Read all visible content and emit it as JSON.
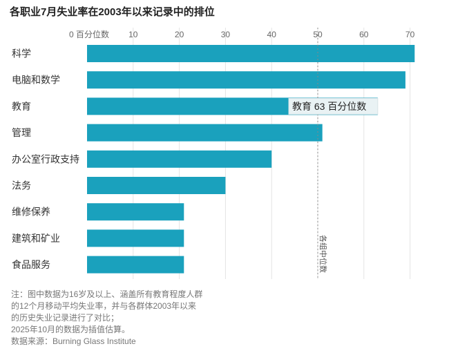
{
  "title": "各职业7月失业率在2003年以来记录中的排位",
  "chart_data": {
    "type": "bar",
    "orientation": "horizontal",
    "title": "各职业7月失业率在2003年以来记录中的排位",
    "x_unit_label": "百分位数",
    "categories": [
      "科学",
      "电脑和数学",
      "教育",
      "管理",
      "办公室行政支持",
      "法务",
      "维修保养",
      "建筑和矿业",
      "食品服务"
    ],
    "values": [
      71,
      69,
      63,
      51,
      40,
      30,
      21,
      21,
      21
    ],
    "xlim": [
      0,
      70
    ],
    "xticks": [
      0,
      10,
      20,
      30,
      40,
      50,
      60,
      70
    ],
    "xtick_labels": [
      "0 百分位数",
      "10",
      "20",
      "30",
      "40",
      "50",
      "60",
      "70"
    ],
    "grid": true,
    "reference_line": {
      "value": 50,
      "label": "各组中位数"
    },
    "tooltip": {
      "category_index": 2,
      "text": "教育 63 百分位数"
    },
    "bar_color": "#1aa1bd",
    "tooltip_bg": "#e9f2f4"
  },
  "notes": [
    "注：图中数据为16岁及以上、涵盖所有教育程度人群",
    "的12个月移动平均失业率，并与各群体2003年以来",
    "的历史失业记录进行了对比；",
    "2025年10月的数据为插值估算。",
    "数据来源：Burning Glass Institute"
  ]
}
